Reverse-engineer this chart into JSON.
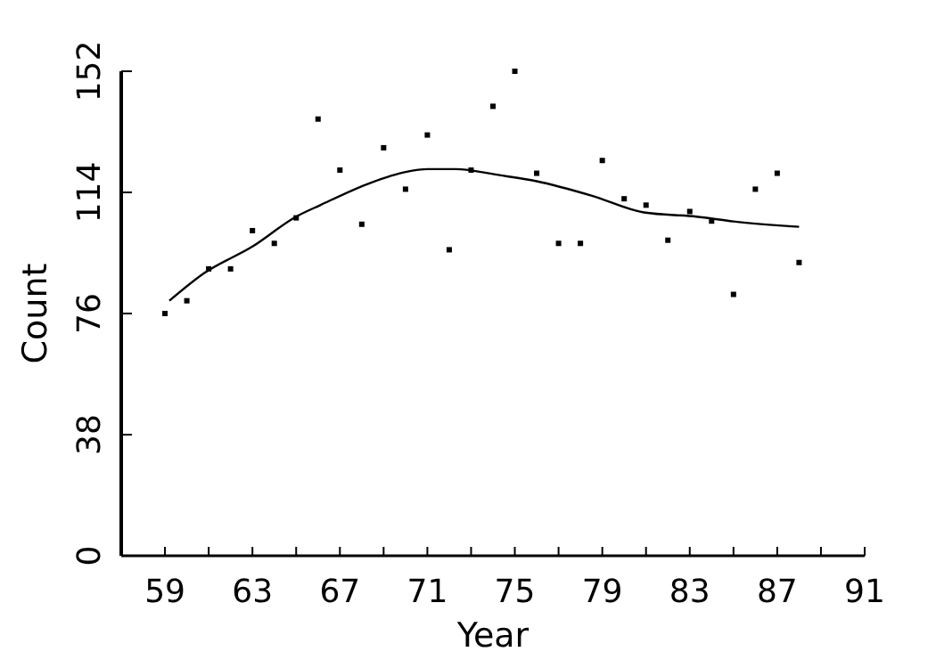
{
  "chart_data": {
    "type": "scatter",
    "xlabel": "Year",
    "ylabel": "Count",
    "xlim": [
      57,
      91
    ],
    "ylim": [
      0,
      152
    ],
    "xticks": [
      59,
      {
        "value": 61,
        "label": null
      },
      63,
      {
        "value": 65,
        "label": null
      },
      67,
      {
        "value": 69,
        "label": null
      },
      71,
      {
        "value": 73,
        "label": null
      },
      75,
      {
        "value": 77,
        "label": null
      },
      79,
      {
        "value": 81,
        "label": null
      },
      83,
      {
        "value": 85,
        "label": null
      },
      87,
      {
        "value": 89,
        "label": null
      },
      91
    ],
    "yticks": [
      0,
      38,
      76,
      114,
      152
    ],
    "grid": false,
    "series": [
      {
        "color": "#000000",
        "marker": "square",
        "x": [
          59,
          60,
          61,
          62,
          63,
          64,
          65,
          66,
          67,
          68,
          69,
          70,
          71,
          72,
          73,
          74,
          75,
          76,
          77,
          78,
          79,
          80,
          81,
          82,
          83,
          84,
          85,
          86,
          87,
          88
        ],
        "values": [
          76,
          80,
          90,
          90,
          102,
          98,
          106,
          137,
          121,
          104,
          128,
          115,
          132,
          96,
          121,
          141,
          152,
          120,
          98,
          98,
          124,
          112,
          110,
          99,
          108,
          105,
          82,
          115,
          120,
          92
        ]
      },
      {
        "type": "line",
        "color": "#000000",
        "marker": "none",
        "line_style": "solid",
        "x": [
          59.2,
          60.8,
          63,
          65,
          66.1,
          68.4,
          70,
          71,
          72.3,
          74.3,
          76,
          78.5,
          80.9,
          83.3,
          85,
          88
        ],
        "values": [
          80,
          88.7,
          97,
          106.4,
          110,
          117,
          120.4,
          121.3,
          121.3,
          119.4,
          117.5,
          113,
          107.7,
          106.4,
          104.9,
          103.2
        ]
      }
    ]
  }
}
